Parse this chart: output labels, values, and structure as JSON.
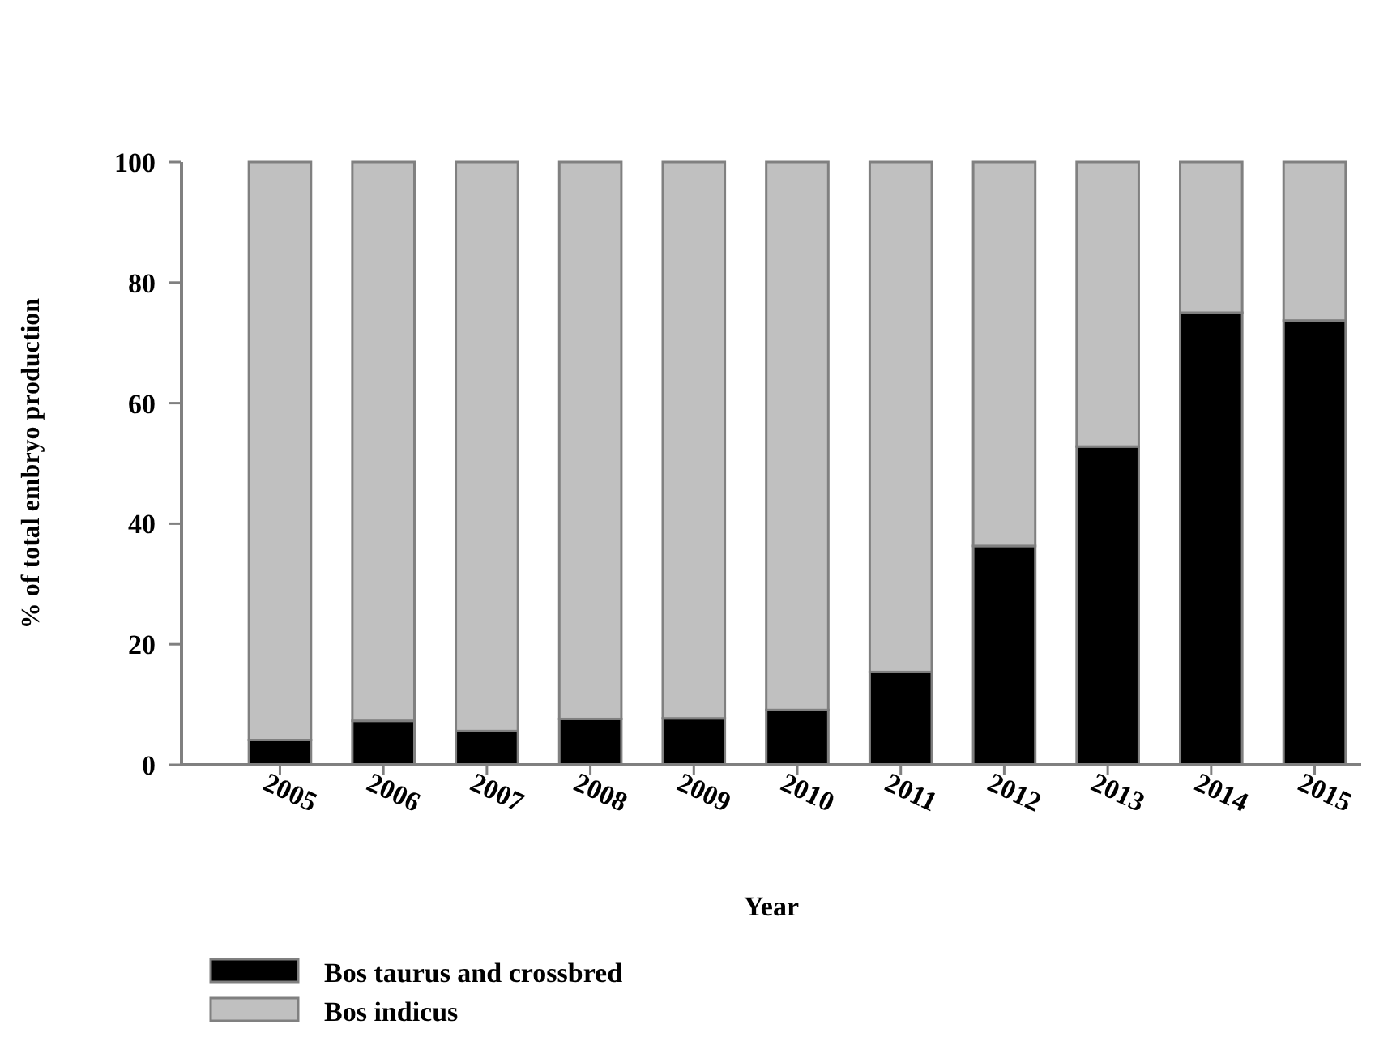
{
  "chart_data": {
    "type": "bar",
    "stacked": true,
    "xlabel": "Year",
    "ylabel": "% of total embryo production",
    "categories": [
      "2005",
      "2006",
      "2007",
      "2008",
      "2009",
      "2010",
      "2011",
      "2012",
      "2013",
      "2014",
      "2015"
    ],
    "ylim": [
      0,
      100
    ],
    "yticks": [
      0,
      20,
      40,
      60,
      80,
      100
    ],
    "grid": false,
    "legend": "bottom left",
    "series": [
      {
        "name": "Bos taurus and crossbred",
        "color": "#000000",
        "values": [
          4.1,
          7.3,
          5.6,
          7.6,
          7.7,
          9.1,
          15.4,
          36.3,
          52.8,
          75.0,
          73.7
        ]
      },
      {
        "name": "Bos indicus",
        "color": "#c0c0c0",
        "values": [
          95.9,
          92.7,
          94.4,
          92.4,
          92.3,
          90.9,
          84.6,
          63.7,
          47.2,
          25.0,
          26.3
        ]
      }
    ]
  }
}
